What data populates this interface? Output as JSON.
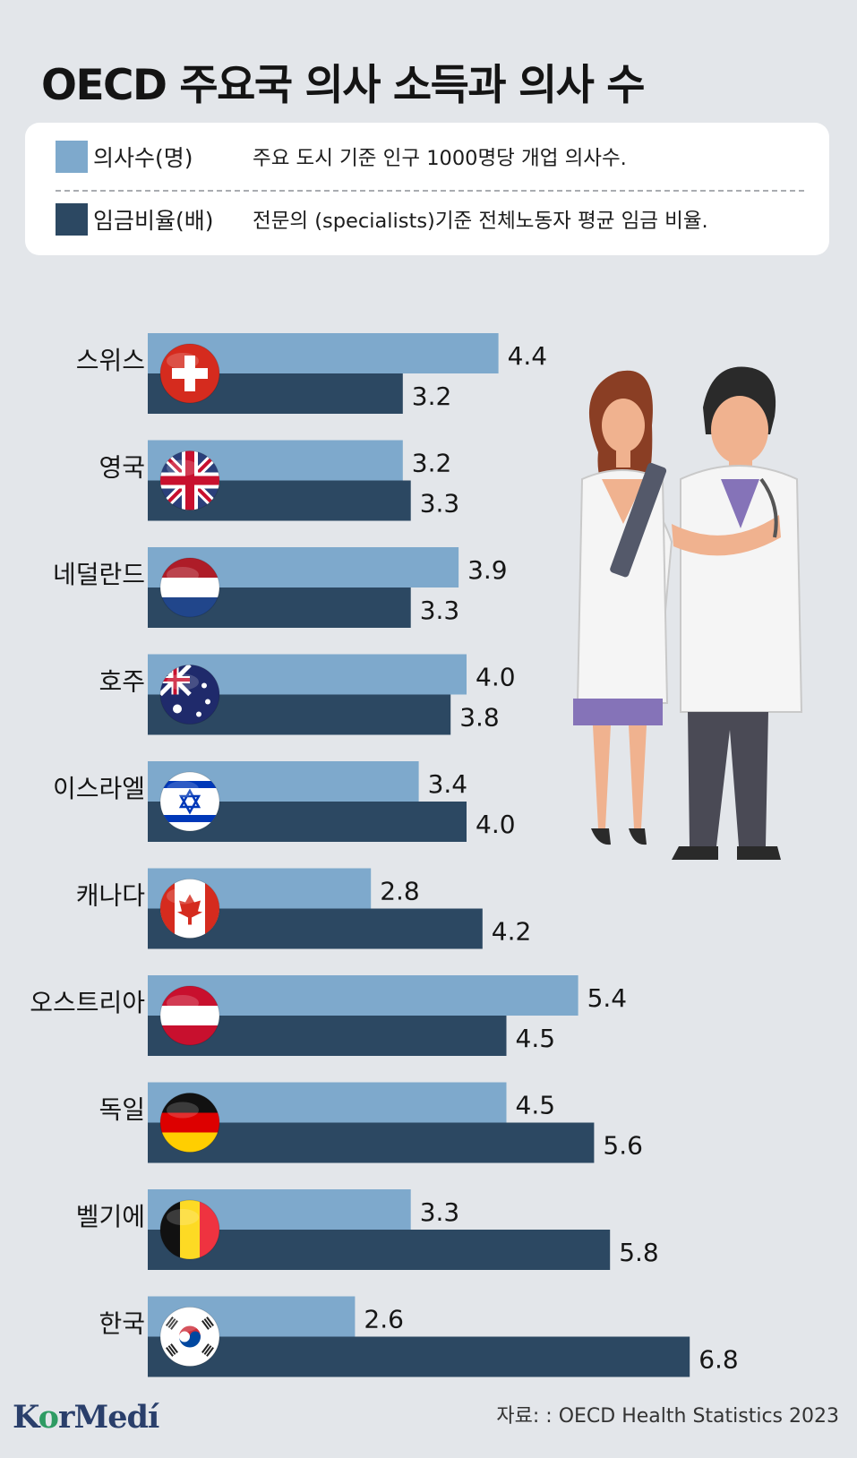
{
  "title": "OECD 주요국 의사 소득과 의사 수",
  "legend": {
    "doctors": {
      "name": "의사수(명)",
      "desc": "주요 도시 기준 인구 1000명당 개업 의사수."
    },
    "wage": {
      "name": "임금비율(배)",
      "desc": "전문의 (specialists)기준 전체노동자 평균 임금 비율."
    }
  },
  "colors": {
    "doctors": "#7ea9cc",
    "wage": "#2c4862"
  },
  "chart_data": {
    "type": "bar",
    "orientation": "horizontal",
    "categories": [
      "스위스",
      "영국",
      "네덜란드",
      "호주",
      "이스라엘",
      "캐나다",
      "오스트리아",
      "독일",
      "벨기에",
      "한국"
    ],
    "series": [
      {
        "name": "의사수(명)",
        "values": [
          4.4,
          3.2,
          3.9,
          4.0,
          3.4,
          2.8,
          5.4,
          4.5,
          3.3,
          2.6
        ],
        "labels": [
          "4.4",
          "3.2",
          "3.9",
          "4.0",
          "3.4",
          "2.8",
          "5.4",
          "4.5",
          "3.3",
          "2.6"
        ]
      },
      {
        "name": "임금비율(배)",
        "values": [
          3.2,
          3.3,
          3.3,
          3.8,
          4.0,
          4.2,
          4.5,
          5.6,
          5.8,
          6.8
        ],
        "labels": [
          "3.2",
          "3.3",
          "3.3",
          "3.8",
          "4.0",
          "4.2",
          "4.5",
          "5.6",
          "5.8",
          "6.8"
        ]
      }
    ],
    "legend": "top",
    "grid": false
  },
  "flags": [
    "swiss-flag-icon",
    "uk-flag-icon",
    "netherlands-flag-icon",
    "australia-flag-icon",
    "israel-flag-icon",
    "canada-flag-icon",
    "austria-flag-icon",
    "germany-flag-icon",
    "belgium-flag-icon",
    "korea-flag-icon"
  ],
  "source": "자료: : OECD Health Statistics 2023",
  "logo": {
    "part1": "K",
    "part2": "o",
    "part3": "rMedí"
  }
}
